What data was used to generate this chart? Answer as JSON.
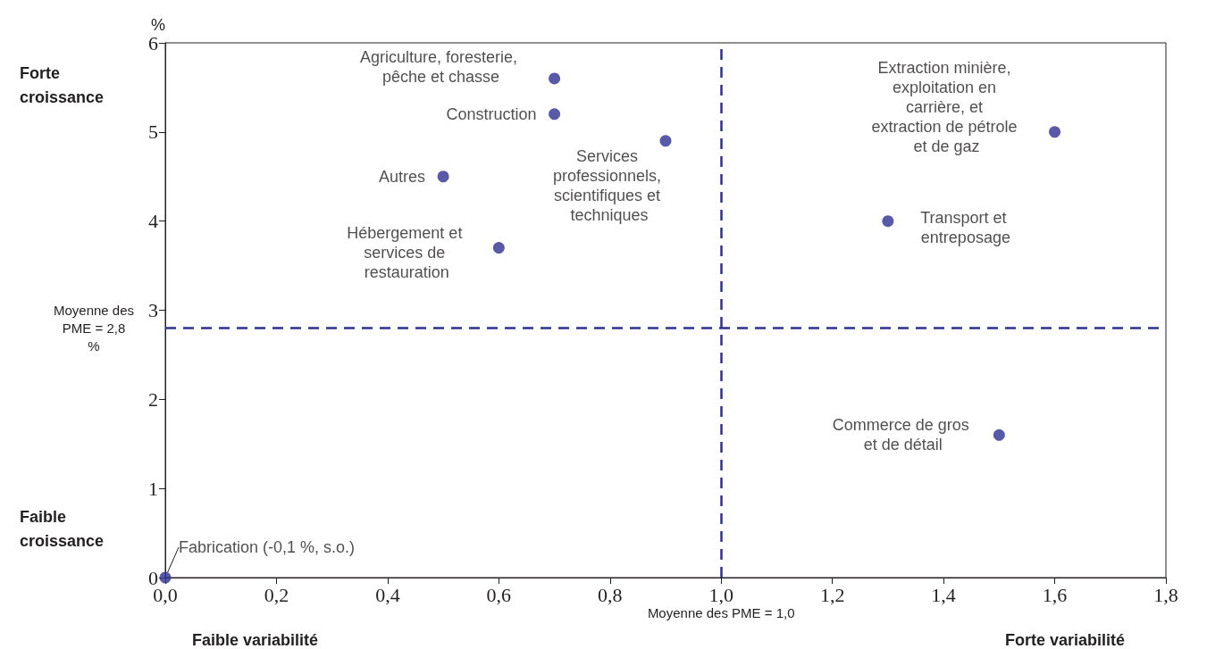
{
  "chart_data": {
    "type": "scatter",
    "ylabel": "%",
    "x": [
      0.7,
      0.7,
      0.9,
      0.5,
      0.6,
      1.6,
      1.3,
      1.5,
      0.0
    ],
    "values": [
      5.6,
      5.2,
      4.9,
      4.5,
      3.7,
      5.0,
      4.0,
      1.6,
      0.0
    ],
    "color": "#2e3192",
    "marker": "circle",
    "grid": false,
    "xlim": [
      0,
      1.8
    ],
    "xticks": [
      {
        "value": 0,
        "label": "0,0"
      },
      {
        "value": 0.2,
        "label": "0,2"
      },
      {
        "value": 0.4,
        "label": "0,4"
      },
      {
        "value": 0.6,
        "label": "0,6"
      },
      {
        "value": 0.8,
        "label": "0,8"
      },
      {
        "value": 1.0,
        "label": "1,0"
      },
      {
        "value": 1.2,
        "label": "1,2"
      },
      {
        "value": 1.4,
        "label": "1,4"
      },
      {
        "value": 1.6,
        "label": "1,6"
      },
      {
        "value": 1.8,
        "label": "1,8"
      }
    ],
    "ylim": [
      0,
      6
    ],
    "yticks": [
      0,
      1,
      2,
      3,
      4,
      5,
      6
    ],
    "ref_lines": [
      {
        "axis": "y",
        "value": 2.8,
        "label": "Moyenne des PME = 2,8 %",
        "color": "#2e3192",
        "line_style": "dashed"
      },
      {
        "axis": "x",
        "value": 1.0,
        "label": "Moyenne des PME = 1,0",
        "color": "#2e3192",
        "line_style": "dashed"
      }
    ],
    "annotations": [
      {
        "text": "Agriculture, foresterie, pêche et chasse",
        "x": 0.7,
        "y": 5.6
      },
      {
        "text": "Construction",
        "x": 0.7,
        "y": 5.2
      },
      {
        "text": "Services professionnels, scientifiques et techniques",
        "x": 0.9,
        "y": 4.9
      },
      {
        "text": "Autres",
        "x": 0.5,
        "y": 4.5
      },
      {
        "text": "Hébergement et services de restauration",
        "x": 0.6,
        "y": 3.7
      },
      {
        "text": "Extraction minière, exploitation en carrière, et extraction de pétrole et de gaz",
        "x": 1.6,
        "y": 5.0
      },
      {
        "text": "Transport et entreposage",
        "x": 1.3,
        "y": 4.0
      },
      {
        "text": "Commerce de gros et de détail",
        "x": 1.5,
        "y": 1.6
      },
      {
        "text": "Fabrication (-0,1 %, s.o.)",
        "x": 0.0,
        "y": 0.0
      },
      "Forte croissance",
      "Faible croissance",
      "Faible variabilité",
      "Forte variabilité"
    ]
  }
}
